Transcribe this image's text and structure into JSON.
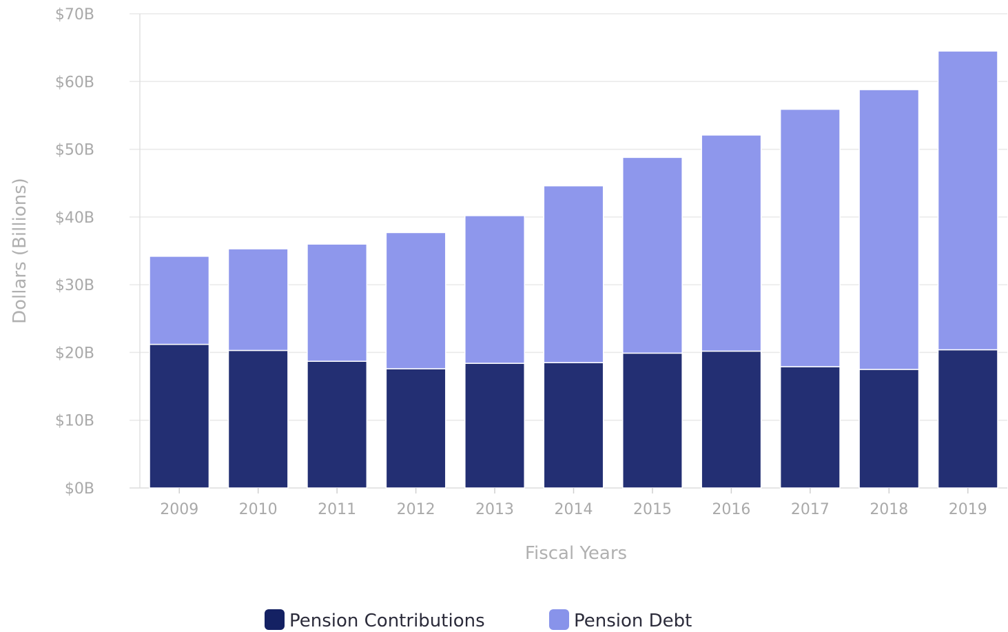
{
  "chart_data": {
    "type": "bar",
    "stacked": true,
    "categories": [
      "2009",
      "2010",
      "2011",
      "2012",
      "2013",
      "2014",
      "2015",
      "2016",
      "2017",
      "2018",
      "2019"
    ],
    "series": [
      {
        "name": "Pension Contributions",
        "color": "#232f73",
        "values": [
          21.2,
          20.3,
          18.7,
          17.6,
          18.4,
          18.5,
          19.9,
          20.2,
          17.9,
          17.5,
          20.4
        ]
      },
      {
        "name": "Pension Debt",
        "color": "#8e97ec",
        "values": [
          13.0,
          15.0,
          17.3,
          20.1,
          21.8,
          26.1,
          28.9,
          31.9,
          38.0,
          41.3,
          44.1
        ]
      }
    ],
    "xlabel": "Fiscal Years",
    "ylabel": "Dollars (Billions)",
    "ylim": [
      0,
      70
    ],
    "yticks": [
      "$0B",
      "$10B",
      "$20B",
      "$30B",
      "$40B",
      "$50B",
      "$60B",
      "$70B"
    ],
    "grid": true,
    "legend_placement": "bottom-center",
    "legend": [
      {
        "label": "Pension Contributions",
        "swatch_color": "#142163"
      },
      {
        "label": "Pension Debt",
        "swatch_color": "#8893ea"
      }
    ]
  }
}
